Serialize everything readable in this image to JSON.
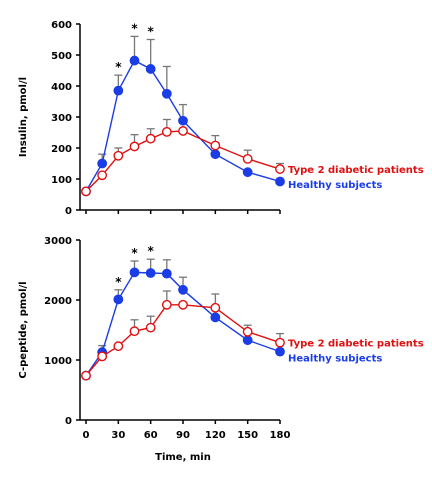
{
  "colors": {
    "healthy": "#1a3de6",
    "diabetic": "#e01010",
    "error_bar": "#777777",
    "axis": "#000000"
  },
  "chart_data": [
    {
      "type": "line",
      "ylabel": "Insulin, pmol/l",
      "xlabel": "",
      "xlim": [
        0,
        180
      ],
      "ylim": [
        0,
        600
      ],
      "yticks": [
        0,
        100,
        200,
        300,
        400,
        500,
        600
      ],
      "x": [
        0,
        15,
        30,
        45,
        60,
        75,
        90,
        120,
        150,
        180
      ],
      "series": [
        {
          "name": "Healthy subjects",
          "marker": "filled-circle",
          "values": [
            60,
            150,
            385,
            482,
            455,
            375,
            288,
            180,
            122,
            92
          ],
          "error": [
            0,
            30,
            50,
            78,
            95,
            88,
            52,
            0,
            0,
            0
          ]
        },
        {
          "name": "Type 2 diabetic patients",
          "marker": "open-circle",
          "values": [
            60,
            112,
            175,
            205,
            230,
            252,
            255,
            208,
            165,
            132
          ],
          "error": [
            0,
            0,
            25,
            38,
            32,
            40,
            0,
            32,
            28,
            18
          ]
        }
      ],
      "significance_marks": [
        {
          "x": 30,
          "label": "*"
        },
        {
          "x": 45,
          "label": "*"
        },
        {
          "x": 60,
          "label": "*"
        }
      ],
      "legend_position": "right"
    },
    {
      "type": "line",
      "ylabel": "C-peptide, pmol/l",
      "xlabel": "Time, min",
      "xlim": [
        0,
        180
      ],
      "ylim": [
        0,
        3000
      ],
      "yticks": [
        0,
        1000,
        2000,
        3000
      ],
      "xticks": [
        0,
        30,
        60,
        90,
        120,
        150,
        180
      ],
      "x": [
        0,
        15,
        30,
        45,
        60,
        75,
        90,
        120,
        150,
        180
      ],
      "series": [
        {
          "name": "Healthy subjects",
          "marker": "filled-circle",
          "values": [
            740,
            1130,
            2010,
            2460,
            2450,
            2440,
            2170,
            1710,
            1330,
            1140
          ],
          "error": [
            0,
            110,
            160,
            190,
            230,
            230,
            210,
            0,
            0,
            0
          ]
        },
        {
          "name": "Type 2 diabetic patients",
          "marker": "open-circle",
          "values": [
            740,
            1060,
            1230,
            1480,
            1540,
            1920,
            1920,
            1870,
            1470,
            1290
          ],
          "error": [
            0,
            0,
            0,
            190,
            190,
            230,
            0,
            230,
            110,
            150
          ]
        }
      ],
      "significance_marks": [
        {
          "x": 30,
          "label": "*"
        },
        {
          "x": 45,
          "label": "*"
        },
        {
          "x": 60,
          "label": "*"
        }
      ],
      "legend_position": "right"
    }
  ]
}
